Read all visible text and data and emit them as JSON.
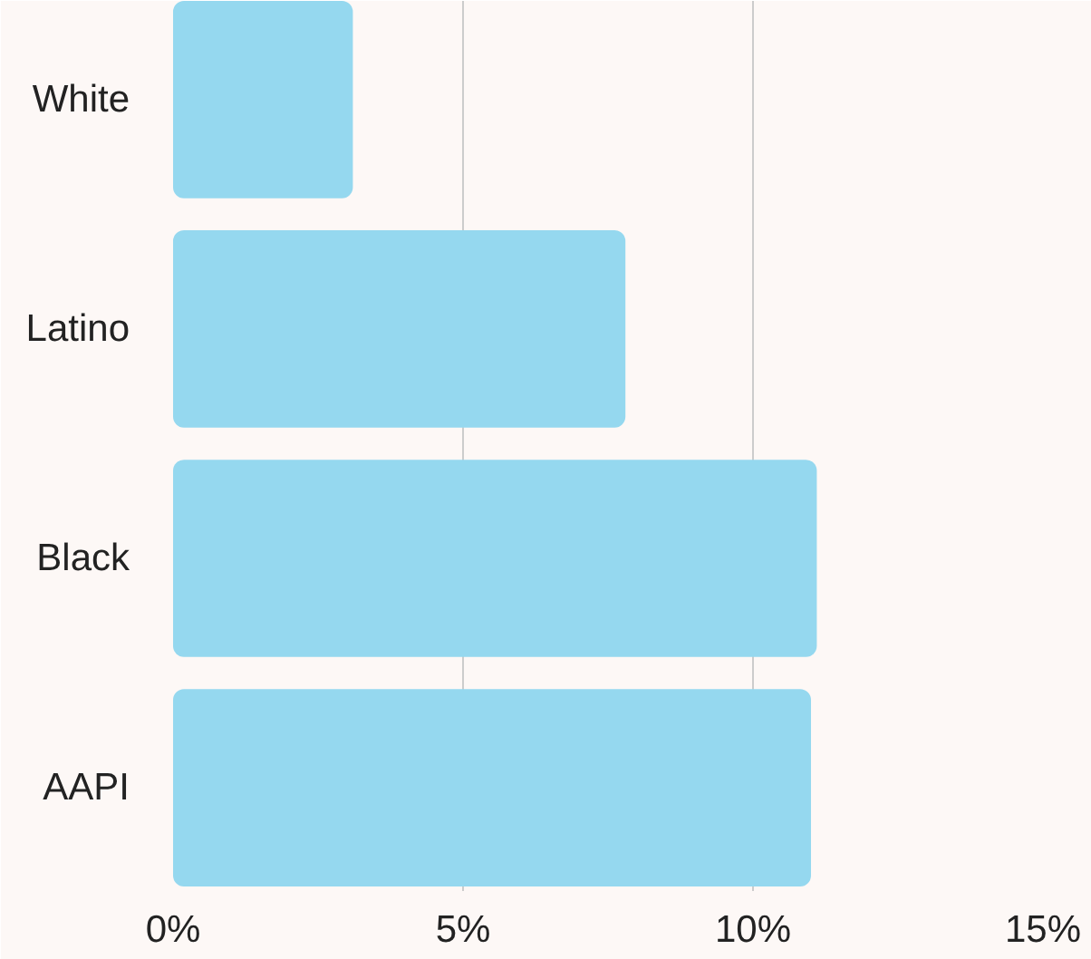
{
  "chart_data": {
    "type": "bar",
    "orientation": "horizontal",
    "categories": [
      "White",
      "Latino",
      "Black",
      "AAPI"
    ],
    "values": [
      3.1,
      7.8,
      11.1,
      11.0
    ],
    "color": "#95d8ef",
    "xlim": [
      0,
      15
    ],
    "xticks": [
      {
        "value": 0,
        "label": "0%"
      },
      {
        "value": 5,
        "label": "5%"
      },
      {
        "value": 10,
        "label": "10%"
      },
      {
        "value": 15,
        "label": "15%"
      }
    ],
    "grid": "x"
  }
}
